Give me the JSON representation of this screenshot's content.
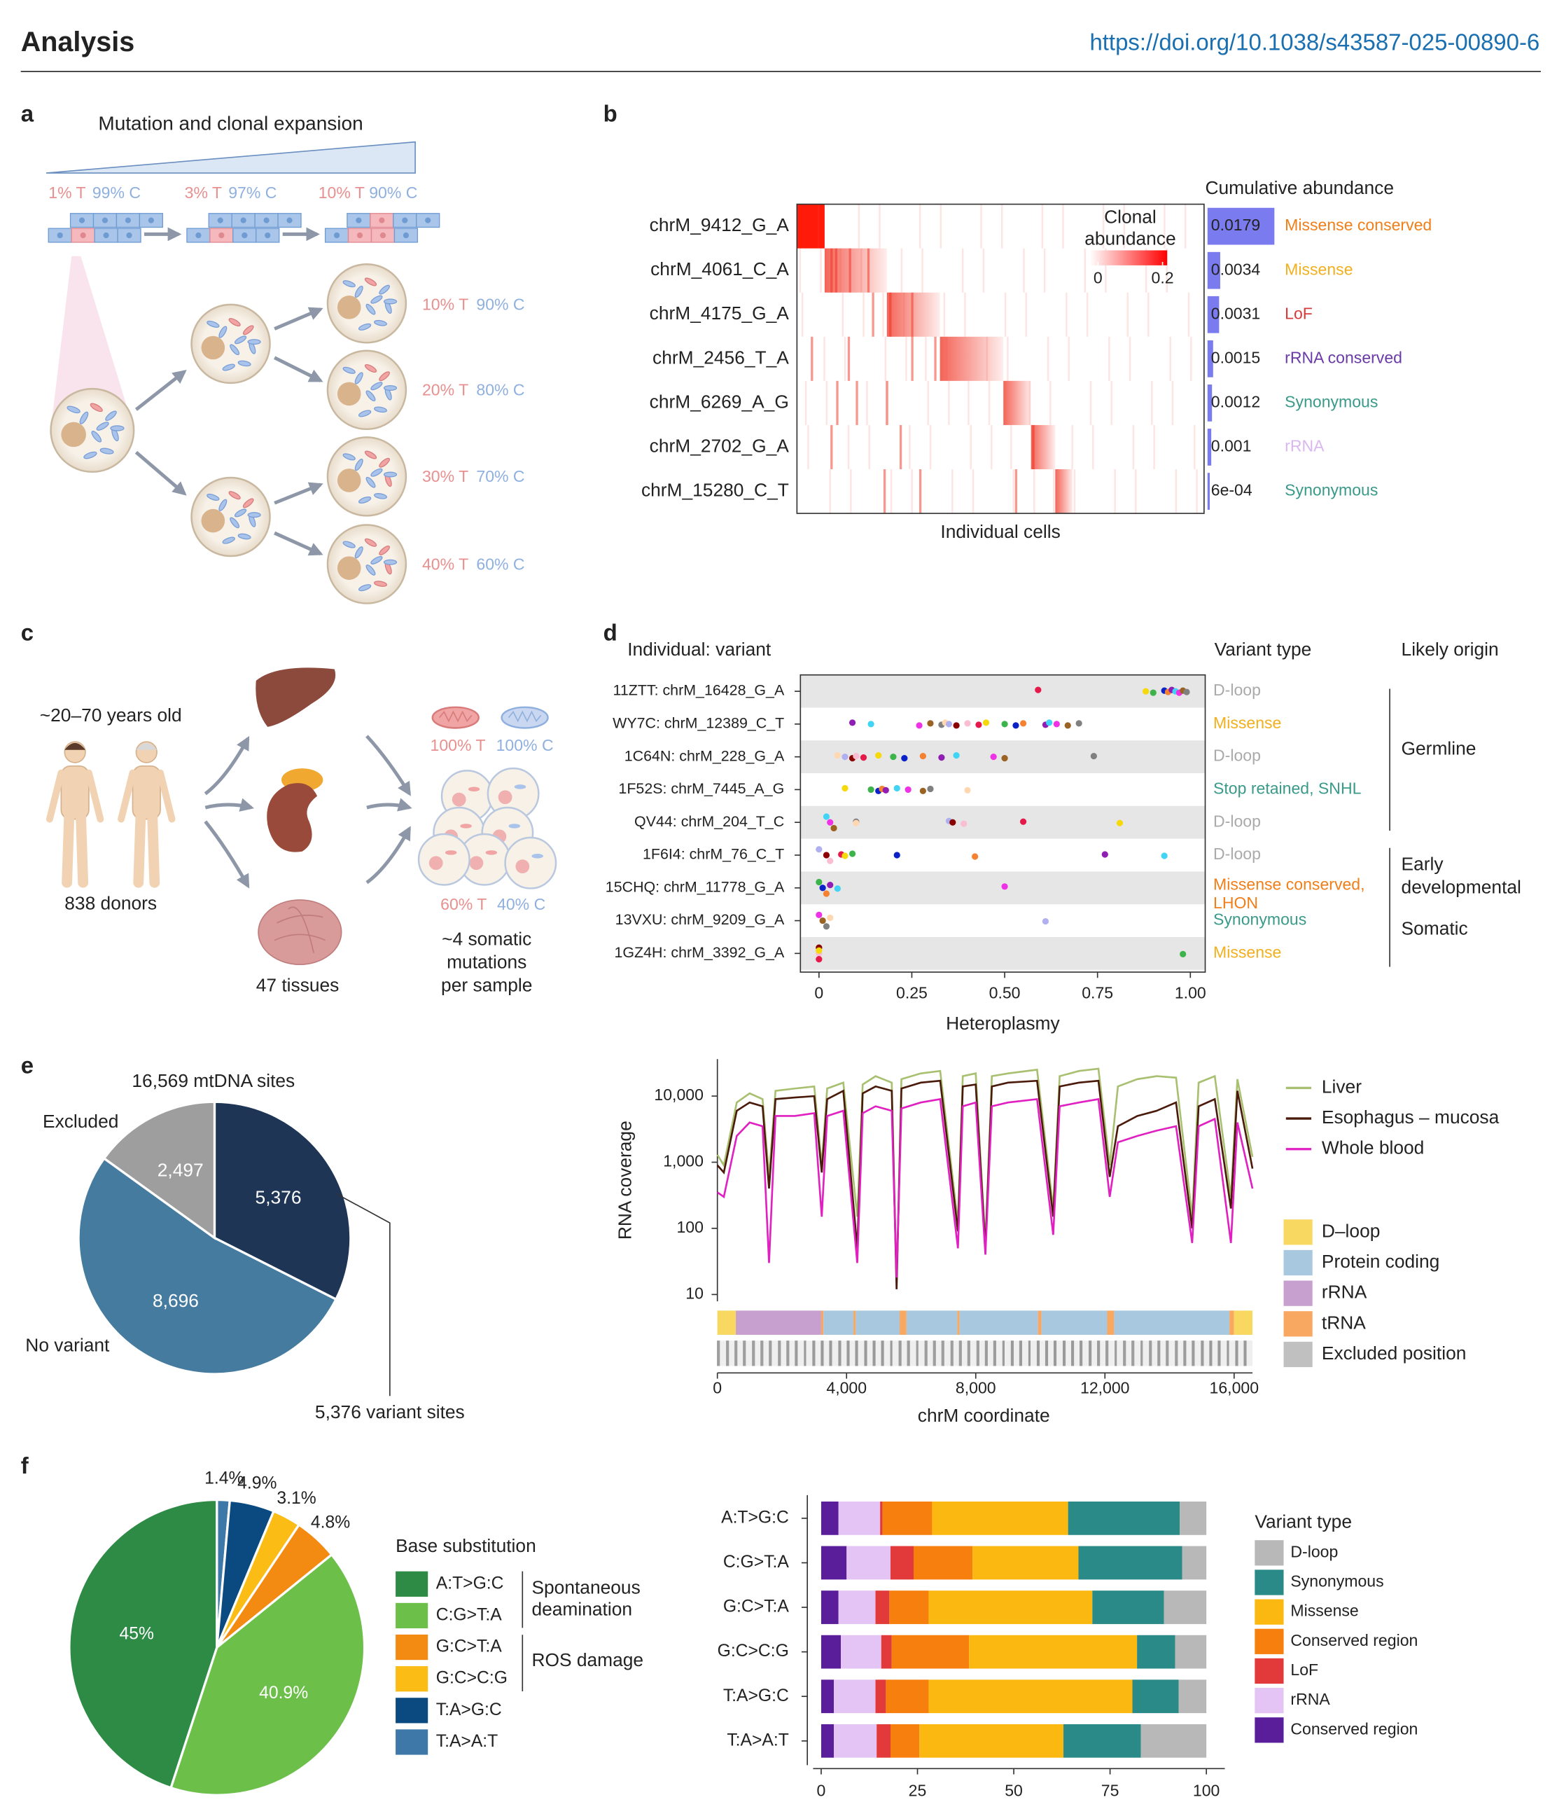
{
  "header": {
    "section": "Analysis",
    "doi": "https://doi.org/10.1038/s43587-025-00890-6"
  },
  "panel_labels": [
    "a",
    "b",
    "c",
    "d",
    "e",
    "f"
  ],
  "panel_a": {
    "title": "Mutation and clonal expansion",
    "stages": [
      {
        "t": "1% T",
        "c": "99% C"
      },
      {
        "t": "3% T",
        "c": "97% C"
      },
      {
        "t": "10% T",
        "c": "90% C"
      }
    ],
    "cells": [
      {
        "t": "10% T",
        "c": "90% C"
      },
      {
        "t": "20% T",
        "c": "80% C"
      },
      {
        "t": "30% T",
        "c": "70% C"
      },
      {
        "t": "40% T",
        "c": "60% C"
      }
    ]
  },
  "panel_c": {
    "age": "~20–70 years old",
    "donors": "838 donors",
    "tissues": "47 tissues",
    "top_t": "100% T",
    "top_c": "100% C",
    "bottom_t": "60% T",
    "bottom_c": "40% C",
    "mutations": [
      "~4 somatic",
      "mutations",
      "per sample"
    ]
  },
  "chart_data": [
    {
      "type": "heatmap_bar",
      "title": "Cumulative abundance",
      "x_label": "Individual cells",
      "colorbar": {
        "title": [
          "Clonal",
          "abundance"
        ],
        "ticks": [
          0,
          0.2
        ]
      },
      "categories": [
        "chrM_9412_G_A",
        "chrM_4061_C_A",
        "chrM_4175_G_A",
        "chrM_2456_T_A",
        "chrM_6269_A_G",
        "chrM_2702_G_A",
        "chrM_15280_C_T"
      ],
      "values": [
        0.0179,
        0.0034,
        0.0031,
        0.0015,
        0.0012,
        0.001,
        0.0006
      ],
      "value_labels": [
        "0.0179",
        "0.0034",
        "0.0031",
        "0.0015",
        "0.0012",
        "0.001",
        "6e-04"
      ],
      "variant_types": [
        "Missense conserved",
        "Missense",
        "LoF",
        "rRNA conserved",
        "Synonymous",
        "rRNA",
        "Synonymous"
      ],
      "type_colors": [
        "#f07f1a",
        "#f2b01e",
        "#d63a3a",
        "#6a3aa8",
        "#3a9a8a",
        "#d9b8f0",
        "#3a9a8a"
      ],
      "color": "#7b7bf0"
    },
    {
      "type": "dot",
      "title": "Individual: variant",
      "type_header": "Variant type",
      "origin_header": "Likely origin",
      "x_label": "Heteroplasmy",
      "categories": [
        "11ZTT: chrM_16428_G_A",
        "WY7C: chrM_12389_C_T",
        "1C64N: chrM_228_G_A",
        "1F52S: chrM_7445_A_G",
        "QV44: chrM_204_T_C",
        "1F6I4: chrM_76_C_T",
        "15CHQ: chrM_11778_G_A",
        "13VXU: chrM_9209_G_A",
        "1GZ4H: chrM_3392_G_A"
      ],
      "values": [
        [
          0.59,
          0.88,
          0.9,
          0.93,
          0.94,
          0.95,
          0.96,
          0.97,
          0.98,
          0.99
        ],
        [
          0.09,
          0.14,
          0.27,
          0.3,
          0.33,
          0.34,
          0.35,
          0.37,
          0.4,
          0.43,
          0.45,
          0.5,
          0.53,
          0.55,
          0.61,
          0.62,
          0.64,
          0.67,
          0.7
        ],
        [
          0.05,
          0.07,
          0.09,
          0.1,
          0.12,
          0.16,
          0.2,
          0.23,
          0.28,
          0.33,
          0.37,
          0.47,
          0.5,
          0.74
        ],
        [
          0.07,
          0.14,
          0.16,
          0.17,
          0.18,
          0.21,
          0.24,
          0.28,
          0.3,
          0.4
        ],
        [
          0.02,
          0.03,
          0.04,
          0.1,
          0.1,
          0.35,
          0.36,
          0.39,
          0.55,
          0.81
        ],
        [
          0,
          0.02,
          0.03,
          0.06,
          0.07,
          0.09,
          0.21,
          0.42,
          0.77,
          0.93
        ],
        [
          0,
          0.01,
          0.02,
          0.03,
          0.05,
          0.5
        ],
        [
          0,
          0.01,
          0.02,
          0.03,
          0.61
        ],
        [
          0,
          0,
          0,
          0,
          0.98
        ]
      ],
      "variant_types": [
        [
          "D-loop"
        ],
        [
          "Missense"
        ],
        [
          "D-loop"
        ],
        [
          "Stop retained, SNHL"
        ],
        [
          "D-loop"
        ],
        [
          "D-loop"
        ],
        [
          "Missense conserved,",
          "LHON"
        ],
        [
          "Synonymous"
        ],
        [
          "Missense"
        ]
      ],
      "type_colors": [
        "#aaaaaa",
        "#f2b01e",
        "#aaaaaa",
        "#3a9a8a",
        "#aaaaaa",
        "#aaaaaa",
        "#f07f1a",
        "#3a9a8a",
        "#f2b01e"
      ],
      "origins": [
        [
          "Germline"
        ],
        [
          "Early",
          "developmental"
        ],
        [
          "Somatic"
        ]
      ],
      "palette": [
        "#e6194b",
        "#f5d90a",
        "#3cb44b",
        "#0a22c8",
        "#f58231",
        "#911eb4",
        "#42d4f4",
        "#f032e6",
        "#9a6324",
        "#808080",
        "#ffd8b1",
        "#b0b0f0",
        "#8b0000",
        "#fabed4"
      ],
      "xlim": [
        -0.05,
        1.04
      ],
      "xticks": [
        {
          "value": 0,
          "label": "0"
        },
        0.25,
        {
          "value": 0.5,
          "label": "0.50"
        },
        0.75,
        {
          "value": 1,
          "label": "1.00"
        }
      ],
      "shaded_rows": true
    },
    {
      "type": "pie",
      "title": "16,569 mtDNA sites",
      "categories": [
        "5,376 variant sites",
        "No variant",
        "Excluded"
      ],
      "values": [
        5376,
        8696,
        2497
      ],
      "value_labels": [
        "5,376",
        "8,696",
        "2,497"
      ],
      "colors": [
        "#1e3556",
        "#467ba0",
        "#9e9e9e"
      ]
    },
    {
      "type": "line",
      "y_label": "RNA coverage",
      "x_label": "chrM coordinate",
      "log_y": true,
      "x": [
        0,
        200,
        600,
        1000,
        1400,
        1600,
        1800,
        2400,
        3000,
        3230,
        3400,
        3900,
        4330,
        4500,
        4900,
        5400,
        5550,
        5700,
        6300,
        6900,
        7450,
        7600,
        8000,
        8300,
        8500,
        9000,
        9900,
        10400,
        10600,
        11200,
        11800,
        12150,
        12400,
        13000,
        13600,
        14200,
        14700,
        14900,
        15400,
        15900,
        16100,
        16569
      ],
      "series": [
        {
          "name": "Liver",
          "color": "#a8c070",
          "values": [
            1300,
            900,
            8000,
            11000,
            9000,
            600,
            12000,
            13000,
            14000,
            900,
            13000,
            16000,
            150,
            15000,
            20000,
            16000,
            15,
            18000,
            22000,
            24000,
            120,
            20000,
            22000,
            60,
            20000,
            22000,
            25000,
            200,
            20000,
            24000,
            26000,
            900,
            14000,
            18000,
            20000,
            19000,
            150,
            16000,
            20000,
            300,
            18000,
            1200
          ]
        },
        {
          "name": "Esophagus – mucosa",
          "color": "#4a1a0a",
          "values": [
            900,
            700,
            6000,
            8000,
            7000,
            400,
            9000,
            9500,
            10000,
            700,
            9000,
            12000,
            50,
            11000,
            14000,
            12000,
            12,
            13000,
            16000,
            17000,
            90,
            14000,
            15000,
            50,
            14000,
            16000,
            17000,
            150,
            14000,
            16000,
            17000,
            600,
            3500,
            5000,
            6000,
            8000,
            100,
            7000,
            9000,
            200,
            12000,
            800
          ]
        },
        {
          "name": "Whole blood",
          "color": "#e020c0",
          "values": [
            350,
            300,
            2500,
            4000,
            3500,
            30,
            5000,
            5000,
            5500,
            150,
            5000,
            6000,
            30,
            5500,
            7000,
            6000,
            18,
            6500,
            8000,
            9000,
            50,
            7000,
            8000,
            40,
            7000,
            8000,
            9000,
            80,
            7000,
            8000,
            9000,
            300,
            2000,
            2500,
            3000,
            3500,
            60,
            3500,
            4500,
            60,
            4000,
            400
          ]
        }
      ],
      "xlim": [
        0,
        16569
      ],
      "xticks": [
        0,
        {
          "value": 4000,
          "label": "4,000"
        },
        {
          "value": 8000,
          "label": "8,000"
        },
        {
          "value": 12000,
          "label": "12,000"
        },
        {
          "value": 16000,
          "label": "16,000"
        }
      ],
      "ylim": [
        8,
        30000
      ],
      "yticks": [
        10,
        100,
        {
          "value": 1000,
          "label": "1,000"
        },
        {
          "value": 10000,
          "label": "10,000"
        }
      ],
      "track_legend": [
        {
          "name": "D–loop",
          "color": "#f8d860"
        },
        {
          "name": "Protein coding",
          "color": "#a8c8e0"
        },
        {
          "name": "rRNA",
          "color": "#c8a0d0"
        },
        {
          "name": "tRNA",
          "color": "#f8a860"
        },
        {
          "name": "Excluded position",
          "color": "#c0c0c0"
        }
      ]
    },
    {
      "type": "pie",
      "legend_title": "Base substitution",
      "categories": [
        "A:T>G:C",
        "C:G>T:A",
        "G:C>T:A",
        "G:C>C:G",
        "T:A>G:C",
        "T:A>A:T"
      ],
      "values": [
        45,
        40.9,
        4.8,
        3.1,
        4.9,
        1.4
      ],
      "value_labels": [
        "45%",
        "40.9%",
        "4.8%",
        "3.1%",
        "4.9%",
        "1.4%"
      ],
      "colors": [
        "#2e8b45",
        "#6cc04a",
        "#f38a12",
        "#fbbc16",
        "#0a4a80",
        "#3d78a8"
      ],
      "groups": [
        [
          "Spontaneous",
          "deamination"
        ],
        [
          "ROS damage"
        ]
      ]
    },
    {
      "type": "stacked_barh",
      "legend_title": "Variant type",
      "categories": [
        "A:T>G:C",
        "C:G>T:A",
        "G:C>T:A",
        "G:C>C:G",
        "T:A>G:C",
        "T:A>A:T"
      ],
      "series": [
        {
          "name": "Conserved region",
          "color": "#5b1e9a",
          "values": [
            4.5,
            6.6,
            4.5,
            5.1,
            3.3,
            3.3
          ]
        },
        {
          "name": "rRNA",
          "color": "#e3c4f5",
          "values": [
            10.8,
            11.4,
            9.6,
            10.5,
            10.8,
            11.1
          ]
        },
        {
          "name": "LoF",
          "color": "#e23a3a",
          "values": [
            0.6,
            6,
            3.6,
            2.7,
            2.7,
            3.6
          ]
        },
        {
          "name": "Conserved region",
          "color": "#f67f0e",
          "values": [
            12.9,
            15.3,
            10.2,
            20.1,
            11.1,
            7.5
          ]
        },
        {
          "name": "Missense",
          "color": "#fbb810",
          "values": [
            35.3,
            27.5,
            42.5,
            43.6,
            52.9,
            37.4
          ]
        },
        {
          "name": "Synonymous",
          "color": "#2a8a88",
          "values": [
            29,
            26.9,
            18.6,
            9.9,
            12,
            20.1
          ]
        },
        {
          "name": "D-loop",
          "color": "#b8b8b8",
          "values": [
            6.9,
            6.3,
            11,
            8.1,
            7.2,
            17
          ]
        }
      ],
      "xlim": [
        0,
        100
      ],
      "xticks": [
        0,
        25,
        50,
        75,
        100
      ]
    }
  ]
}
